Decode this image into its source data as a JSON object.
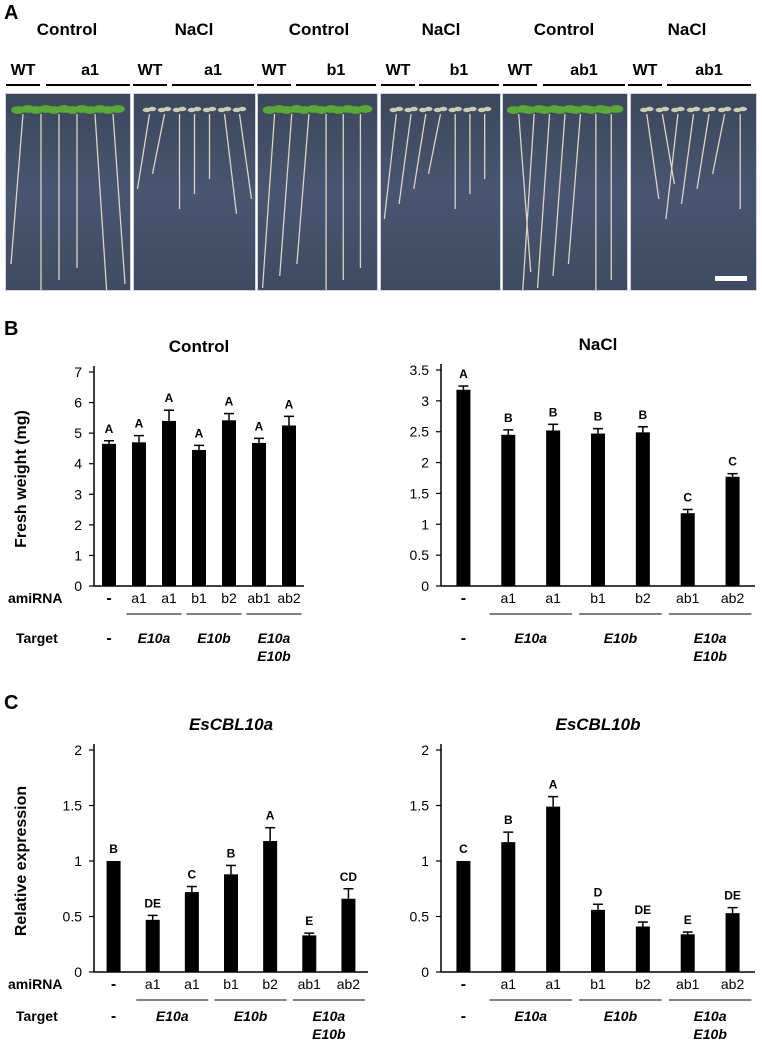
{
  "panel_a": {
    "letter": "A",
    "conditions": [
      "Control",
      "NaCl",
      "Control",
      "NaCl",
      "Control",
      "NaCl"
    ],
    "genotype_groups": [
      {
        "wt": "WT",
        "line": "a1"
      },
      {
        "wt": "WT",
        "line": "a1"
      },
      {
        "wt": "WT",
        "line": "b1"
      },
      {
        "wt": "WT",
        "line": "b1"
      },
      {
        "wt": "WT",
        "line": "ab1"
      },
      {
        "wt": "WT",
        "line": "ab1"
      }
    ],
    "photo_colors": {
      "background": "#455069",
      "root": "#d8d4c6",
      "leaf": "#5aa83a"
    }
  },
  "panel_b": {
    "letter": "B"
  },
  "panel_c": {
    "letter": "C"
  },
  "row_labels": {
    "amirna": "amiRNA",
    "target": "Target"
  },
  "chart_data": [
    {
      "type": "bar",
      "panel": "B",
      "title": "Control",
      "title_italic": false,
      "ylabel": "Fresh weight (mg)",
      "ylim": [
        0,
        7
      ],
      "yticks": [
        0,
        1,
        2,
        3,
        4,
        5,
        6,
        7
      ],
      "categories": [
        "-",
        "a1",
        "a1",
        "b1",
        "b2",
        "ab1",
        "ab2"
      ],
      "values": [
        4.65,
        4.7,
        5.4,
        4.45,
        5.42,
        4.68,
        5.25
      ],
      "errors": [
        0.1,
        0.22,
        0.35,
        0.15,
        0.22,
        0.15,
        0.3
      ],
      "letters": [
        "A",
        "A",
        "A",
        "A",
        "A",
        "A",
        "A"
      ],
      "targets": [
        [
          "-"
        ],
        [
          "E10a"
        ],
        [
          "E10b"
        ],
        [
          "E10a",
          "E10b"
        ]
      ],
      "bar_color": "#000000"
    },
    {
      "type": "bar",
      "panel": "B",
      "title": "NaCl",
      "title_italic": false,
      "ylabel": "",
      "ylim": [
        0,
        3.5
      ],
      "yticks": [
        0,
        0.5,
        1,
        1.5,
        2,
        2.5,
        3,
        3.5
      ],
      "categories": [
        "-",
        "a1",
        "a1",
        "b1",
        "b2",
        "ab1",
        "ab2"
      ],
      "values": [
        3.18,
        2.45,
        2.52,
        2.47,
        2.49,
        1.18,
        1.77
      ],
      "errors": [
        0.06,
        0.08,
        0.1,
        0.08,
        0.09,
        0.06,
        0.05
      ],
      "letters": [
        "A",
        "B",
        "B",
        "B",
        "B",
        "C",
        "C"
      ],
      "targets": [
        [
          "-"
        ],
        [
          "E10a"
        ],
        [
          "E10b"
        ],
        [
          "E10a",
          "E10b"
        ]
      ],
      "bar_color": "#000000"
    },
    {
      "type": "bar",
      "panel": "C",
      "title": "EsCBL10a",
      "title_italic": true,
      "ylabel": "Relative expression",
      "ylim": [
        0,
        2
      ],
      "yticks": [
        0,
        0.5,
        1,
        1.5,
        2
      ],
      "categories": [
        "-",
        "a1",
        "a1",
        "b1",
        "b2",
        "ab1",
        "ab2"
      ],
      "values": [
        1.0,
        0.47,
        0.72,
        0.88,
        1.18,
        0.33,
        0.66
      ],
      "errors": [
        0,
        0.04,
        0.05,
        0.08,
        0.12,
        0.02,
        0.09
      ],
      "letters": [
        "B",
        "DE",
        "C",
        "B",
        "A",
        "E",
        "CD"
      ],
      "targets": [
        [
          "-"
        ],
        [
          "E10a"
        ],
        [
          "E10b"
        ],
        [
          "E10a",
          "E10b"
        ]
      ],
      "bar_color": "#000000"
    },
    {
      "type": "bar",
      "panel": "C",
      "title": "EsCBL10b",
      "title_italic": true,
      "ylabel": "",
      "ylim": [
        0,
        2
      ],
      "yticks": [
        0,
        0.5,
        1,
        1.5,
        2
      ],
      "categories": [
        "-",
        "a1",
        "a1",
        "b1",
        "b2",
        "ab1",
        "ab2"
      ],
      "values": [
        1.0,
        1.17,
        1.49,
        0.56,
        0.41,
        0.34,
        0.53
      ],
      "errors": [
        0,
        0.09,
        0.09,
        0.05,
        0.04,
        0.02,
        0.05
      ],
      "letters": [
        "C",
        "B",
        "A",
        "D",
        "DE",
        "E",
        "DE"
      ],
      "targets": [
        [
          "-"
        ],
        [
          "E10a"
        ],
        [
          "E10b"
        ],
        [
          "E10a",
          "E10b"
        ]
      ],
      "bar_color": "#000000"
    }
  ]
}
